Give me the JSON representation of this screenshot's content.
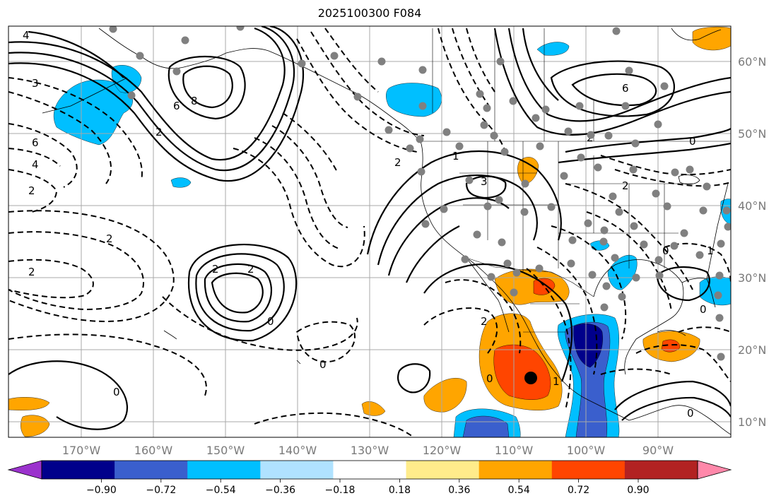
{
  "title": "2025100300 F084",
  "lat_labels": [
    "60°N",
    "50°N",
    "40°N",
    "30°N",
    "20°N",
    "10°N"
  ],
  "lon_labels": [
    "170°W",
    "160°W",
    "150°W",
    "140°W",
    "130°W",
    "120°W",
    "110°W",
    "100°W",
    "90°W"
  ],
  "colorbar": {
    "tick_labels": [
      "−0.90",
      "−0.72",
      "−0.54",
      "−0.36",
      "−0.18",
      "0.18",
      "0.36",
      "0.54",
      "0.72",
      "0.90"
    ],
    "colors": [
      "#9b32cd",
      "#00008b",
      "#3a5fcd",
      "#00bfff",
      "#b0e2ff",
      "#ffffff",
      "#ffec8b",
      "#ffa500",
      "#ff4500",
      "#b22222",
      "#ff88aa"
    ]
  },
  "contour_labels": [
    "4",
    "3",
    "6",
    "4",
    "2",
    "2",
    "6",
    "8",
    "2",
    "2",
    "6",
    "2",
    "0",
    "1",
    "3",
    "2",
    "2",
    "2",
    "0",
    "2",
    "0",
    "0",
    "1",
    "0",
    "2",
    "1",
    "0",
    "0",
    "0"
  ],
  "colors": {
    "grid": "#a8a8a8",
    "contour": "#000000",
    "coast": "#000000",
    "station": "#808080",
    "marker": "#000000"
  }
}
